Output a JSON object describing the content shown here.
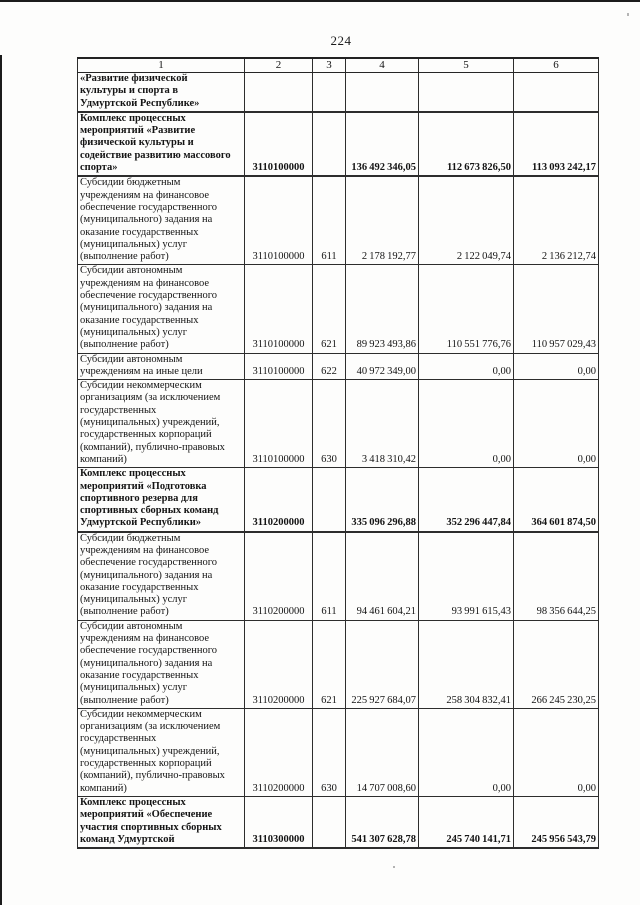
{
  "page": {
    "number": "224"
  },
  "table": {
    "column_headers": [
      "1",
      "2",
      "3",
      "4",
      "5",
      "6"
    ],
    "rows": [
      {
        "name": "«Развитие физической\nкультуры и спорта в\nУдмуртской Республике»",
        "bold": true,
        "code": "",
        "vr": "",
        "v4": "",
        "v5": "",
        "v6": ""
      },
      {
        "name": "Комплекс процессных\nмероприятий «Развитие\nфизической культуры и\nсодействие развитию массового\nспорта»",
        "bold": true,
        "code": "3110100000",
        "vr": "",
        "v4": "136 492 346,05",
        "v5": "112 673 826,50",
        "v6": "113 093 242,17"
      },
      {
        "name": "Субсидии бюджетным\nучреждениям на финансовое\nобеспечение государственного\n(муниципального) задания на\nоказание государственных\n(муниципальных) услуг\n(выполнение работ)",
        "bold": false,
        "code": "3110100000",
        "vr": "611",
        "v4": "2 178 192,77",
        "v5": "2 122 049,74",
        "v6": "2 136 212,74"
      },
      {
        "name": "Субсидии автономным\nучреждениям на финансовое\nобеспечение государственного\n(муниципального) задания на\nоказание государственных\n(муниципальных) услуг\n(выполнение работ)",
        "bold": false,
        "code": "3110100000",
        "vr": "621",
        "v4": "89 923 493,86",
        "v5": "110 551 776,76",
        "v6": "110 957 029,43"
      },
      {
        "name": "Субсидии автономным\nучреждениям на иные цели",
        "bold": false,
        "code": "3110100000",
        "vr": "622",
        "v4": "40 972 349,00",
        "v5": "0,00",
        "v6": "0,00"
      },
      {
        "name": "Субсидии некоммерческим\nорганизациям (за исключением\nгосударственных\n(муниципальных) учреждений,\nгосударственных корпораций\n(компаний), публично-правовых\nкомпаний)",
        "bold": false,
        "code": "3110100000",
        "vr": "630",
        "v4": "3 418 310,42",
        "v5": "0,00",
        "v6": "0,00"
      },
      {
        "name": "Комплекс процессных\nмероприятий «Подготовка\nспортивного резерва для\nспортивных сборных команд\nУдмуртской Республики»",
        "bold": true,
        "code": "3110200000",
        "vr": "",
        "v4": "335 096 296,88",
        "v5": "352 296 447,84",
        "v6": "364 601 874,50"
      },
      {
        "name": "Субсидии бюджетным\nучреждениям на финансовое\nобеспечение государственного\n(муниципального) задания на\nоказание государственных\n(муниципальных) услуг\n(выполнение работ)",
        "bold": false,
        "code": "3110200000",
        "vr": "611",
        "v4": "94 461 604,21",
        "v5": "93 991 615,43",
        "v6": "98 356 644,25"
      },
      {
        "name": "Субсидии автономным\nучреждениям на финансовое\nобеспечение государственного\n(муниципального) задания на\nоказание государственных\n(муниципальных) услуг\n(выполнение работ)",
        "bold": false,
        "code": "3110200000",
        "vr": "621",
        "v4": "225 927 684,07",
        "v5": "258 304 832,41",
        "v6": "266 245 230,25"
      },
      {
        "name": "Субсидии некоммерческим\nорганизациям (за исключением\nгосударственных\n(муниципальных) учреждений,\nгосударственных корпораций\n(компаний), публично-правовых\nкомпаний)",
        "bold": false,
        "code": "3110200000",
        "vr": "630",
        "v4": "14 707 008,60",
        "v5": "0,00",
        "v6": "0,00"
      },
      {
        "name": "Комплекс процессных\nмероприятий «Обеспечение\nучастия спортивных сборных\nкоманд Удмуртской",
        "bold": true,
        "code": "3110300000",
        "vr": "",
        "v4": "541 307 628,78",
        "v5": "245 740 141,71",
        "v6": "245 956 543,79"
      }
    ]
  }
}
